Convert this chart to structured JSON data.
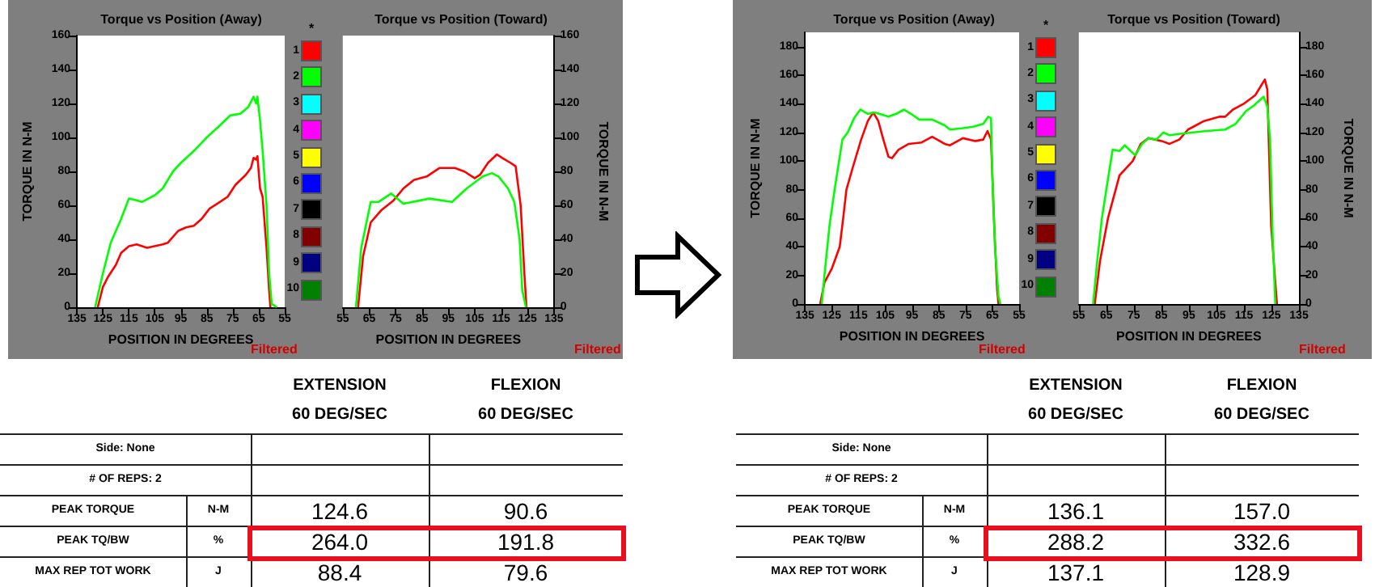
{
  "chart_data": [
    {
      "type": "line",
      "title": "Torque vs Position (Away)",
      "xlabel": "POSITION IN DEGREES",
      "ylabel": "TORQUE IN N-M",
      "legend": "right",
      "legend_title": "*",
      "annotations": [
        "Filtered"
      ],
      "xlim": [
        135,
        55
      ],
      "xticks": [
        135,
        125,
        115,
        105,
        95,
        85,
        75,
        65,
        55
      ],
      "ylim": [
        0,
        160
      ],
      "yticks": [
        0,
        20,
        40,
        60,
        80,
        100,
        120,
        140,
        160
      ],
      "series": [
        {
          "name": "1",
          "color": "#ff0000",
          "x": [
            127,
            125,
            123,
            120,
            118,
            115,
            112,
            108,
            102,
            100,
            96,
            93,
            90,
            87,
            84,
            80,
            77,
            74,
            70,
            68,
            67,
            66,
            65.5,
            64.5,
            63.5,
            62,
            61,
            60.5
          ],
          "values": [
            0,
            12,
            18,
            25,
            32,
            36,
            37,
            35,
            37,
            38,
            45,
            47,
            48,
            52,
            58,
            62,
            65,
            72,
            78,
            82,
            88,
            87,
            89,
            70,
            65,
            35,
            10,
            0
          ]
        },
        {
          "name": "2",
          "color": "#00ff00",
          "x": [
            128,
            125,
            122,
            118,
            115,
            112,
            110,
            105,
            102,
            98,
            95,
            90,
            85,
            80,
            76,
            72,
            69,
            67,
            66,
            65.5,
            64.5,
            63.5,
            62,
            61,
            60,
            58
          ],
          "values": [
            0,
            20,
            38,
            52,
            64,
            63,
            62,
            66,
            70,
            80,
            85,
            92,
            100,
            107,
            113,
            114,
            118,
            124,
            120,
            124,
            110,
            92,
            60,
            20,
            2,
            0
          ]
        },
        {
          "name": "3",
          "color": "#00ffff"
        },
        {
          "name": "4",
          "color": "#ff00ff"
        },
        {
          "name": "5",
          "color": "#ffff00"
        },
        {
          "name": "6",
          "color": "#0000ff"
        },
        {
          "name": "7",
          "color": "#000000"
        },
        {
          "name": "8",
          "color": "#800000"
        },
        {
          "name": "9",
          "color": "#000080"
        },
        {
          "name": "10",
          "color": "#008000"
        }
      ]
    },
    {
      "type": "line",
      "title": "Torque vs Position (Toward)",
      "xlabel": "POSITION IN DEGREES",
      "y2label": "TORQUE IN N-M",
      "annotations": [
        "Filtered"
      ],
      "xlim": [
        55,
        135
      ],
      "xticks": [
        55,
        65,
        75,
        85,
        95,
        105,
        115,
        125,
        135
      ],
      "y2lim": [
        0,
        160
      ],
      "y2ticks": [
        0,
        20,
        40,
        60,
        80,
        100,
        120,
        140,
        160
      ],
      "series": [
        {
          "color": "#ff0000",
          "axis": "y2",
          "x": [
            60.8,
            62.7,
            65.6,
            69.5,
            74.3,
            78,
            82,
            86.8,
            91.6,
            97.4,
            101,
            105,
            107,
            110,
            113.4,
            115.3,
            118.6,
            120.5,
            122.4,
            123.8,
            124.6
          ],
          "values": [
            0,
            30,
            50,
            57,
            63,
            70,
            75,
            77,
            82,
            82,
            80,
            76,
            78,
            85,
            90,
            88,
            85,
            83,
            60,
            20,
            0
          ]
        },
        {
          "color": "#00ff00",
          "axis": "y2",
          "x": [
            60,
            62,
            65.6,
            68.5,
            73.3,
            78,
            87.8,
            96.4,
            102,
            108,
            111.5,
            114,
            117.6,
            120,
            122,
            123,
            124.4
          ],
          "values": [
            0,
            35,
            62,
            62,
            67,
            61,
            64,
            62,
            70,
            77,
            79,
            77,
            70,
            62,
            40,
            10,
            0
          ]
        }
      ]
    },
    {
      "type": "line",
      "title": "Torque vs Position (Away)",
      "xlabel": "POSITION IN DEGREES",
      "ylabel": "TORQUE IN N-M",
      "legend": "right",
      "legend_title": "*",
      "annotations": [
        "Filtered"
      ],
      "xlim": [
        135,
        55
      ],
      "xticks": [
        135,
        125,
        115,
        105,
        95,
        85,
        75,
        65,
        55
      ],
      "ylim": [
        0,
        190
      ],
      "yticks": [
        0,
        20,
        40,
        60,
        80,
        100,
        120,
        140,
        160,
        180
      ],
      "series": [
        {
          "name": "1",
          "color": "#ff0000",
          "x": [
            129.3,
            127.7,
            124.9,
            122,
            120.7,
            119.5,
            117.2,
            114,
            111.5,
            109.5,
            107.6,
            105.7,
            103.8,
            102.5,
            100,
            96.2,
            91.4,
            87.5,
            82.8,
            80.8,
            76,
            71.3,
            68.4,
            66.8,
            65.5,
            64.2,
            63.2,
            62.7
          ],
          "values": [
            0,
            15,
            25,
            40,
            60,
            80,
            95,
            115,
            128,
            134,
            128,
            115,
            103,
            102,
            108,
            112,
            113,
            117,
            112,
            111,
            116,
            114,
            115,
            121,
            115,
            50,
            10,
            0
          ]
        },
        {
          "name": "2",
          "color": "#00ff00",
          "x": [
            128.7,
            127.7,
            125.8,
            123.9,
            121,
            119,
            116.6,
            114.3,
            111.5,
            109,
            103.8,
            100.9,
            98,
            95.4,
            92.3,
            87.5,
            82.8,
            80.8,
            76,
            72.2,
            68.4,
            66.5,
            65.5,
            65,
            64,
            62.7,
            62
          ],
          "values": [
            0,
            20,
            55,
            80,
            115,
            120,
            130,
            136,
            133,
            134,
            131,
            133,
            136,
            133,
            129,
            129,
            125,
            122,
            123,
            124,
            126,
            131,
            130,
            90,
            40,
            5,
            0
          ]
        },
        {
          "name": "3",
          "color": "#00ffff"
        },
        {
          "name": "4",
          "color": "#ff00ff"
        },
        {
          "name": "5",
          "color": "#ffff00"
        },
        {
          "name": "6",
          "color": "#0000ff"
        },
        {
          "name": "7",
          "color": "#000000"
        },
        {
          "name": "8",
          "color": "#800000"
        },
        {
          "name": "9",
          "color": "#000080"
        },
        {
          "name": "10",
          "color": "#008000"
        }
      ]
    },
    {
      "type": "line",
      "title": "Torque vs Position (Toward)",
      "xlabel": "POSITION IN DEGREES",
      "y2label": "TORQUE IN N-M",
      "annotations": [
        "Filtered"
      ],
      "xlim": [
        55,
        135
      ],
      "xticks": [
        55,
        65,
        75,
        85,
        95,
        105,
        115,
        125,
        135
      ],
      "y2lim": [
        0,
        190
      ],
      "y2ticks": [
        0,
        20,
        40,
        60,
        80,
        100,
        120,
        140,
        160,
        180
      ],
      "series": [
        {
          "color": "#ff0000",
          "axis": "y2",
          "x": [
            60.8,
            62.7,
            65.6,
            69.8,
            74.6,
            77.5,
            80.3,
            85.1,
            88,
            91.5,
            94.7,
            100.5,
            106.2,
            108.2,
            111,
            114.9,
            119.1,
            121,
            122.6,
            123.5,
            124.9,
            126.4,
            127
          ],
          "values": [
            0,
            30,
            60,
            90,
            100,
            112,
            116,
            114,
            112,
            115,
            122,
            128,
            131,
            131,
            136,
            140,
            146,
            152,
            157,
            150,
            55,
            15,
            0
          ]
        },
        {
          "color": "#00ff00",
          "axis": "y2",
          "x": [
            60.2,
            61.7,
            63.4,
            65,
            67.3,
            69.8,
            71.7,
            75.5,
            78,
            80.3,
            83.2,
            85.7,
            88,
            91.9,
            96.7,
            101.4,
            108.2,
            112,
            115.8,
            118.7,
            122.2,
            123.5,
            124.5,
            125.4,
            126.4
          ],
          "values": [
            0,
            30,
            60,
            80,
            108,
            107,
            111,
            104,
            112,
            116,
            115,
            120,
            118,
            119,
            120,
            121,
            122,
            126,
            135,
            139,
            145,
            138,
            115,
            50,
            0
          ]
        }
      ]
    },
    {
      "type": "other",
      "annotations": [
        "EXTENSION",
        "60 DEG/SEC",
        "FLEXION",
        "60 DEG/SEC",
        "Side: None",
        "# OF REPS: 2",
        "PEAK TORQUE",
        "N-M",
        "124.6",
        "90.6",
        "PEAK TQ/BW",
        "%",
        "264.0",
        "191.8",
        "MAX REP TOT WORK",
        "J",
        "88.4",
        "79.6"
      ]
    },
    {
      "type": "other",
      "annotations": [
        "EXTENSION",
        "60 DEG/SEC",
        "FLEXION",
        "60 DEG/SEC",
        "Side: None",
        "# OF REPS: 2",
        "PEAK TORQUE",
        "N-M",
        "136.1",
        "157.0",
        "PEAK TQ/BW",
        "%",
        "288.2",
        "332.6",
        "MAX REP TOT WORK",
        "J",
        "137.1",
        "128.9"
      ]
    }
  ]
}
